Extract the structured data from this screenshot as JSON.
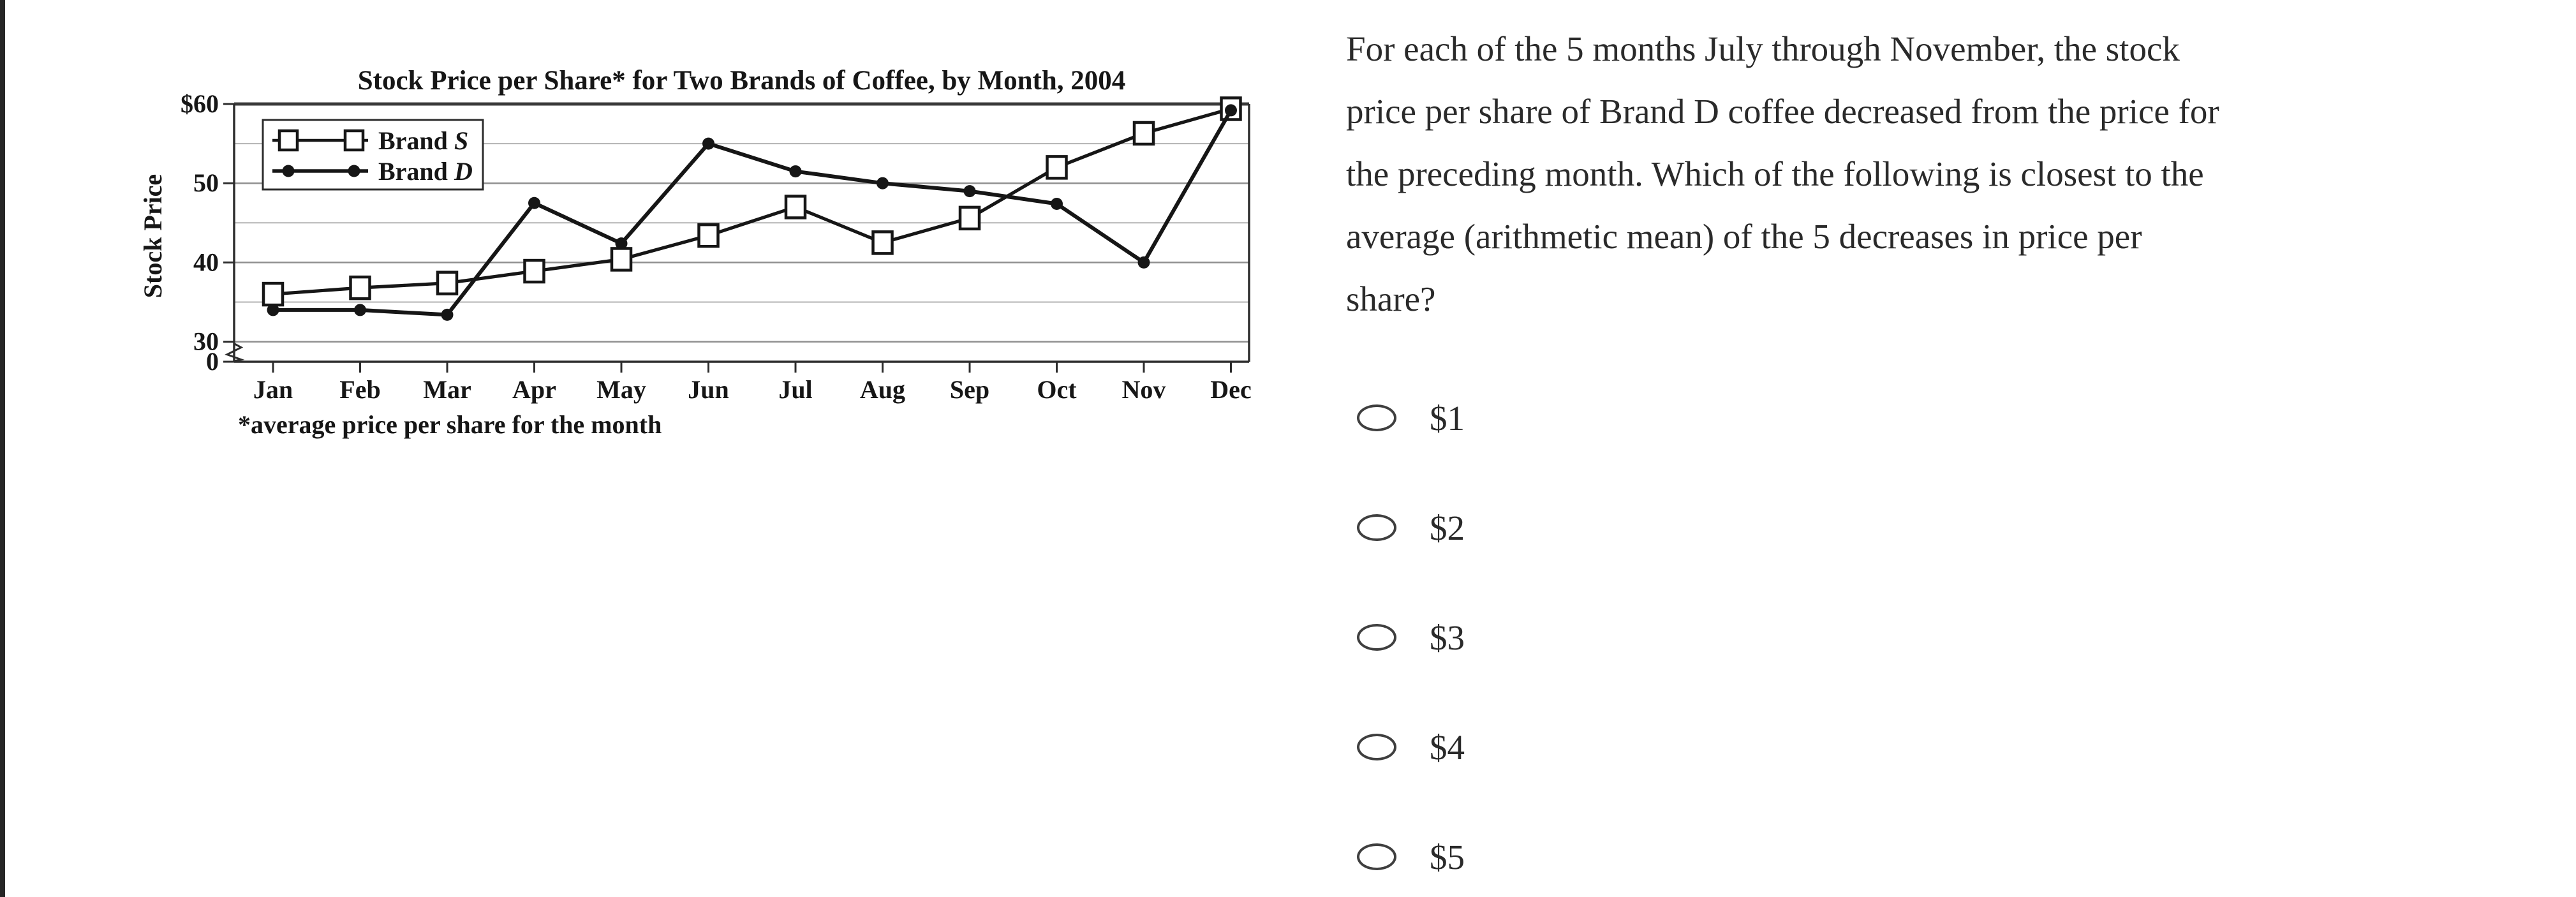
{
  "colors": {
    "divider": "#262626",
    "question_text": "#2a2a2a",
    "chart_ink": "#161616",
    "gridline_major": "#8f8f8f",
    "gridline_minor": "#b3b3b3",
    "radio_border": "#3f3f3f"
  },
  "chart_data": {
    "type": "line",
    "title": "Stock Price per Share* for Two Brands of Coffee, by Month, 2004",
    "ylabel": "Stock Price",
    "footnote": "*average price per share for the month",
    "categories": [
      "Jan",
      "Feb",
      "Mar",
      "Apr",
      "May",
      "Jun",
      "Jul",
      "Aug",
      "Sep",
      "Oct",
      "Nov",
      "Dec"
    ],
    "y_axis": {
      "labeled_ticks": [
        {
          "label": "$60",
          "value": 60
        },
        {
          "label": "50",
          "value": 50
        },
        {
          "label": "40",
          "value": 40
        },
        {
          "label": "30",
          "value": 30
        },
        {
          "label": "0",
          "value": 0
        }
      ],
      "gridline_step": 5,
      "ylim": [
        30,
        60
      ],
      "axis_break_to_zero": true,
      "grid": true
    },
    "legend_position": "top-left-inside",
    "series": [
      {
        "name": "Brand S",
        "marker": "open-square",
        "values": [
          36,
          36.8,
          37.4,
          38.9,
          40.4,
          43.4,
          47,
          42.5,
          45.6,
          52,
          56.3,
          59.4
        ]
      },
      {
        "name": "Brand D",
        "marker": "filled-circle",
        "values": [
          34,
          34,
          33.4,
          47.5,
          42.4,
          55,
          51.5,
          50,
          49,
          47.4,
          40,
          59.2
        ]
      }
    ]
  },
  "question": {
    "lines": [
      "For each of the 5 months July through November, the stock",
      "price per share of Brand D coffee decreased from the price for",
      "the preceding month. Which of the following is closest to the",
      "average (arithmetic mean) of the 5 decreases in price per",
      "share?"
    ]
  },
  "options": [
    {
      "label": "$1",
      "selected": false
    },
    {
      "label": "$2",
      "selected": false
    },
    {
      "label": "$3",
      "selected": false
    },
    {
      "label": "$4",
      "selected": false
    },
    {
      "label": "$5",
      "selected": false
    }
  ]
}
